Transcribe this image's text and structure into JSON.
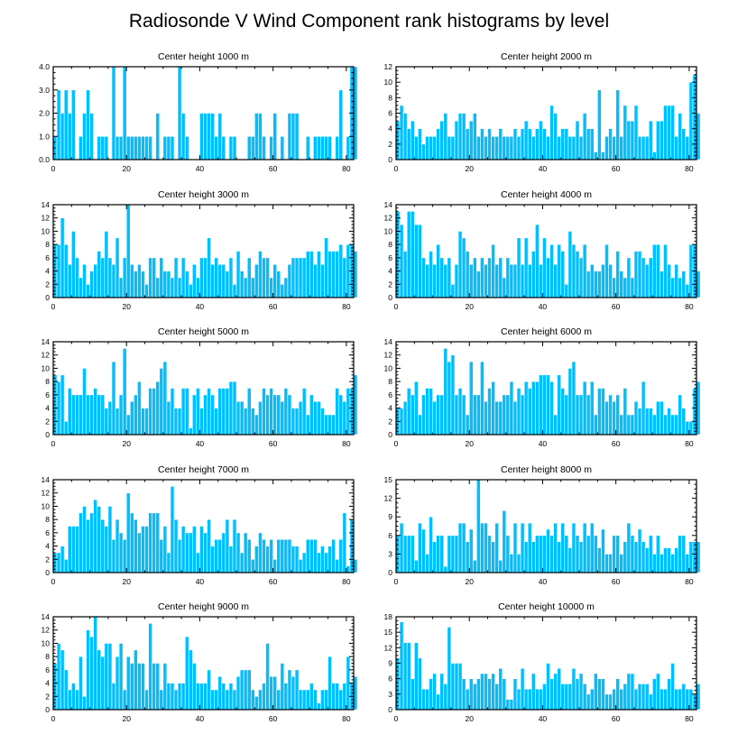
{
  "page": {
    "title": "Radiosonde V Wind Component rank histograms by level"
  },
  "chart_data": [
    {
      "type": "bar",
      "title": "Center height 1000 m",
      "xlim": [
        0,
        82
      ],
      "ylim": [
        0,
        4
      ],
      "xticks": [
        0,
        20,
        40,
        60,
        80
      ],
      "yticks": [
        "0.0",
        "1.0",
        "2.0",
        "3.0",
        "4.0"
      ],
      "values": [
        1,
        3,
        2,
        3,
        2,
        3,
        0,
        1,
        2,
        3,
        2,
        0,
        1,
        1,
        1,
        0,
        4,
        1,
        1,
        4,
        1,
        1,
        1,
        1,
        1,
        1,
        1,
        0,
        2,
        0,
        1,
        1,
        1,
        0,
        4,
        2,
        1,
        0,
        0,
        0,
        2,
        2,
        2,
        2,
        1,
        2,
        1,
        0,
        1,
        1,
        0,
        0,
        0,
        1,
        1,
        2,
        2,
        1,
        0,
        1,
        2,
        0,
        1,
        0,
        2,
        2,
        2,
        0,
        0,
        1,
        0,
        1,
        1,
        1,
        1,
        1,
        0,
        1,
        3,
        0,
        1,
        4,
        4
      ]
    },
    {
      "type": "bar",
      "title": "Center height 2000 m",
      "xlim": [
        0,
        82
      ],
      "ylim": [
        0,
        12
      ],
      "xticks": [
        0,
        20,
        40,
        60,
        80
      ],
      "yticks": [
        "0",
        "2",
        "4",
        "6",
        "8",
        "10",
        "12"
      ],
      "values": [
        5,
        7,
        6,
        4,
        5,
        3,
        4,
        2,
        3,
        3,
        3,
        4,
        5,
        6,
        3,
        3,
        5,
        6,
        6,
        4,
        5,
        6,
        3,
        4,
        3,
        4,
        3,
        3,
        4,
        3,
        3,
        3,
        4,
        3,
        4,
        5,
        4,
        3,
        4,
        5,
        4,
        3,
        7,
        6,
        3,
        4,
        4,
        3,
        3,
        5,
        3,
        6,
        4,
        4,
        1,
        9,
        1,
        3,
        4,
        3,
        9,
        3,
        7,
        5,
        5,
        7,
        3,
        3,
        3,
        5,
        1,
        5,
        5,
        7,
        7,
        7,
        3,
        6,
        4,
        3,
        10,
        11,
        6
      ]
    },
    {
      "type": "bar",
      "title": "Center height 3000 m",
      "xlim": [
        0,
        82
      ],
      "ylim": [
        0,
        14
      ],
      "xticks": [
        0,
        20,
        40,
        60,
        80
      ],
      "yticks": [
        "0",
        "2",
        "4",
        "6",
        "8",
        "10",
        "12",
        "14"
      ],
      "values": [
        8,
        8,
        12,
        8,
        5,
        10,
        6,
        3,
        5,
        2,
        4,
        5,
        7,
        6,
        10,
        6,
        5,
        9,
        3,
        6,
        14,
        5,
        4,
        5,
        4,
        2,
        6,
        6,
        3,
        6,
        4,
        4,
        3,
        6,
        3,
        6,
        4,
        2,
        5,
        3,
        6,
        6,
        9,
        5,
        6,
        5,
        5,
        4,
        6,
        2,
        7,
        4,
        3,
        6,
        3,
        5,
        7,
        6,
        6,
        3,
        5,
        4,
        2,
        3,
        5,
        6,
        6,
        6,
        6,
        7,
        7,
        5,
        7,
        5,
        9,
        7,
        7,
        7,
        8,
        6,
        8,
        8,
        7
      ]
    },
    {
      "type": "bar",
      "title": "Center height 4000 m",
      "xlim": [
        0,
        82
      ],
      "ylim": [
        0,
        14
      ],
      "xticks": [
        0,
        20,
        40,
        60,
        80
      ],
      "yticks": [
        "0",
        "2",
        "4",
        "6",
        "8",
        "10",
        "12",
        "14"
      ],
      "values": [
        13,
        11,
        7,
        13,
        13,
        11,
        11,
        6,
        5,
        7,
        5,
        8,
        6,
        5,
        6,
        2,
        5,
        10,
        9,
        7,
        5,
        6,
        4,
        6,
        5,
        6,
        8,
        5,
        6,
        3,
        6,
        5,
        5,
        9,
        5,
        9,
        5,
        7,
        11,
        5,
        9,
        6,
        8,
        5,
        8,
        7,
        2,
        10,
        8,
        7,
        6,
        8,
        4,
        5,
        4,
        4,
        5,
        8,
        5,
        3,
        7,
        4,
        3,
        6,
        3,
        7,
        7,
        6,
        5,
        6,
        8,
        8,
        4,
        8,
        5,
        3,
        5,
        3,
        4,
        2,
        8,
        8,
        4
      ]
    },
    {
      "type": "bar",
      "title": "Center height 5000 m",
      "xlim": [
        0,
        82
      ],
      "ylim": [
        0,
        14
      ],
      "xticks": [
        0,
        20,
        40,
        60,
        80
      ],
      "yticks": [
        "0",
        "2",
        "4",
        "6",
        "8",
        "10",
        "12",
        "14"
      ],
      "values": [
        9,
        8,
        9,
        2,
        7,
        6,
        6,
        6,
        10,
        6,
        6,
        7,
        6,
        6,
        4,
        5,
        11,
        4,
        6,
        13,
        3,
        5,
        6,
        8,
        4,
        4,
        7,
        7,
        8,
        10,
        11,
        5,
        7,
        4,
        4,
        7,
        7,
        1,
        6,
        7,
        4,
        6,
        7,
        6,
        4,
        7,
        7,
        7,
        8,
        8,
        5,
        5,
        4,
        7,
        4,
        3,
        5,
        7,
        6,
        7,
        6,
        6,
        5,
        7,
        6,
        4,
        4,
        5,
        7,
        3,
        6,
        5,
        5,
        4,
        3,
        3,
        3,
        7,
        6,
        5,
        7,
        7,
        9
      ]
    },
    {
      "type": "bar",
      "title": "Center height 6000 m",
      "xlim": [
        0,
        82
      ],
      "ylim": [
        0,
        14
      ],
      "xticks": [
        0,
        20,
        40,
        60,
        80
      ],
      "yticks": [
        "0",
        "2",
        "4",
        "6",
        "8",
        "10",
        "12",
        "14"
      ],
      "values": [
        4,
        4,
        5,
        7,
        6,
        8,
        3,
        6,
        7,
        7,
        5,
        6,
        6,
        13,
        11,
        12,
        6,
        7,
        6,
        3,
        11,
        6,
        6,
        11,
        5,
        7,
        8,
        5,
        5,
        6,
        6,
        8,
        5,
        7,
        6,
        8,
        7,
        8,
        8,
        9,
        9,
        9,
        8,
        3,
        9,
        7,
        6,
        10,
        11,
        6,
        6,
        8,
        6,
        8,
        3,
        7,
        7,
        5,
        6,
        5,
        6,
        3,
        7,
        3,
        3,
        5,
        4,
        8,
        4,
        4,
        3,
        5,
        5,
        3,
        4,
        3,
        3,
        6,
        4,
        2,
        2,
        7,
        8
      ]
    },
    {
      "type": "bar",
      "title": "Center height 7000 m",
      "xlim": [
        0,
        82
      ],
      "ylim": [
        0,
        14
      ],
      "xticks": [
        0,
        20,
        40,
        60,
        80
      ],
      "yticks": [
        "0",
        "2",
        "4",
        "6",
        "8",
        "10",
        "12",
        "14"
      ],
      "values": [
        3,
        3,
        4,
        2,
        7,
        7,
        7,
        9,
        10,
        8,
        9,
        11,
        10,
        8,
        7,
        10,
        5,
        8,
        6,
        5,
        12,
        9,
        8,
        6,
        7,
        7,
        9,
        9,
        9,
        5,
        7,
        3,
        13,
        8,
        5,
        7,
        6,
        6,
        7,
        3,
        7,
        6,
        8,
        4,
        5,
        5,
        6,
        8,
        4,
        8,
        6,
        3,
        6,
        5,
        2,
        4,
        6,
        5,
        4,
        5,
        2,
        5,
        5,
        5,
        5,
        4,
        4,
        2,
        3,
        5,
        5,
        5,
        3,
        4,
        3,
        4,
        5,
        2,
        5,
        9,
        1,
        8,
        2
      ]
    },
    {
      "type": "bar",
      "title": "Center height 8000 m",
      "xlim": [
        0,
        82
      ],
      "ylim": [
        0,
        15
      ],
      "xticks": [
        0,
        20,
        40,
        60,
        80
      ],
      "yticks": [
        "0",
        "3",
        "6",
        "9",
        "12",
        "15"
      ],
      "values": [
        6,
        8,
        6,
        6,
        6,
        2,
        8,
        7,
        3,
        9,
        5,
        6,
        6,
        1,
        6,
        6,
        6,
        8,
        8,
        5,
        7,
        2,
        15,
        8,
        8,
        6,
        5,
        8,
        2,
        10,
        6,
        3,
        8,
        3,
        8,
        5,
        8,
        5,
        6,
        6,
        6,
        7,
        6,
        8,
        5,
        8,
        6,
        4,
        8,
        6,
        5,
        8,
        6,
        8,
        6,
        4,
        7,
        3,
        3,
        6,
        6,
        3,
        5,
        8,
        6,
        5,
        7,
        5,
        4,
        6,
        3,
        6,
        3,
        4,
        4,
        3,
        4,
        6,
        6,
        3,
        5,
        5,
        5
      ]
    },
    {
      "type": "bar",
      "title": "Center height 9000 m",
      "xlim": [
        0,
        82
      ],
      "ylim": [
        0,
        14
      ],
      "xticks": [
        0,
        20,
        40,
        60,
        80
      ],
      "yticks": [
        "0",
        "2",
        "4",
        "6",
        "8",
        "10",
        "12",
        "14"
      ],
      "values": [
        7,
        10,
        9,
        6,
        3,
        4,
        3,
        8,
        2,
        12,
        11,
        14,
        9,
        8,
        10,
        10,
        4,
        8,
        10,
        3,
        8,
        7,
        9,
        7,
        7,
        3,
        13,
        7,
        7,
        3,
        7,
        4,
        4,
        3,
        4,
        4,
        11,
        9,
        7,
        4,
        4,
        4,
        6,
        3,
        3,
        5,
        4,
        3,
        4,
        3,
        5,
        6,
        6,
        6,
        3,
        2,
        3,
        4,
        10,
        5,
        5,
        3,
        7,
        4,
        6,
        5,
        6,
        3,
        3,
        3,
        4,
        3,
        1,
        3,
        3,
        8,
        4,
        4,
        3,
        4,
        8,
        4,
        5
      ]
    },
    {
      "type": "bar",
      "title": "Center height 10000 m",
      "xlim": [
        0,
        82
      ],
      "ylim": [
        0,
        18
      ],
      "xticks": [
        0,
        20,
        40,
        60,
        80
      ],
      "yticks": [
        "0",
        "3",
        "6",
        "9",
        "12",
        "15",
        "18"
      ],
      "values": [
        10,
        17,
        13,
        13,
        6,
        13,
        10,
        4,
        4,
        6,
        7,
        3,
        7,
        5,
        16,
        9,
        9,
        9,
        6,
        4,
        6,
        5,
        6,
        7,
        7,
        6,
        7,
        5,
        8,
        6,
        2,
        2,
        6,
        4,
        8,
        4,
        4,
        7,
        4,
        4,
        5,
        9,
        6,
        7,
        8,
        5,
        5,
        5,
        8,
        6,
        7,
        5,
        3,
        4,
        7,
        6,
        6,
        3,
        3,
        4,
        6,
        4,
        5,
        7,
        7,
        4,
        5,
        5,
        5,
        3,
        6,
        7,
        4,
        4,
        6,
        9,
        4,
        4,
        5,
        4,
        4,
        3,
        5
      ]
    }
  ]
}
